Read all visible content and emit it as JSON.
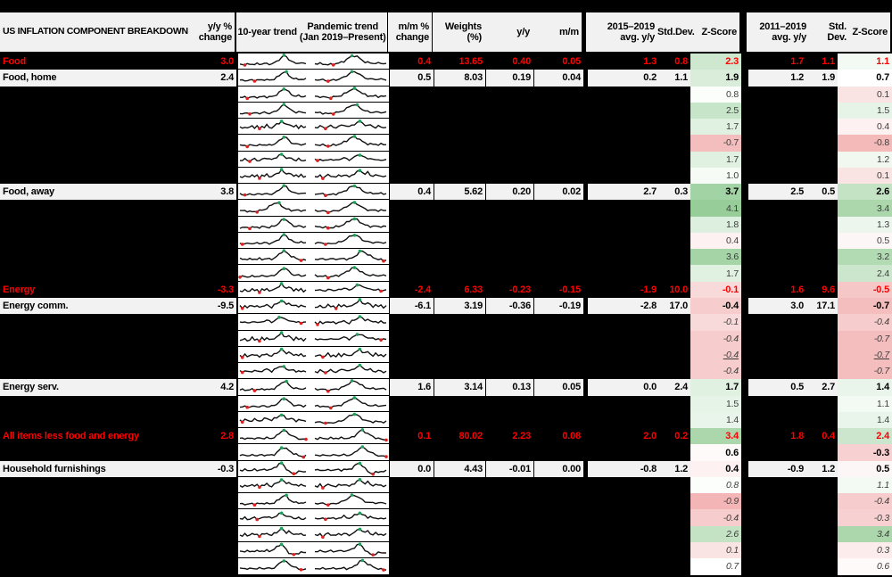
{
  "header": {
    "label": "US INFLATION COMPONENT BREAKDOWN",
    "yy": "y/y %\nchange",
    "trend10": "10-year trend",
    "pandemic": "Pandemic trend\n(Jan 2019–Present)",
    "mm": "m/m %\nchange",
    "weights": "Weights\n(%)",
    "yoy": "y/y",
    "mom": "m/m",
    "avg15": "2015–2019\navg. y/y",
    "sd15": "Std.Dev.",
    "z1": "Z-Score",
    "avg11": "2011–2019\navg. y/y",
    "sd11": "Std. Dev.",
    "z2": "Z-Score"
  },
  "colors": {
    "accent_red": "#fe0000",
    "row_light_bg": "#f2f2f2",
    "header_bg": "#f1f1f1",
    "black": "#000000",
    "z_green_end": "#96cd98",
    "z_red_end": "#f2b0b0",
    "spark_line": "#111111",
    "spark_max_dot": "#1fa05a",
    "spark_min_dot": "#df2020"
  },
  "z_scale": {
    "midpoint": 0.7,
    "green_at": 4.1,
    "red_at": -1.0
  },
  "rows": [
    {
      "label": "Food",
      "type": "agg",
      "yy": "3.0",
      "mm": "0.4",
      "w": "13.65",
      "yoy": "0.40",
      "mom": "0.05",
      "a15": "1.3",
      "s15": "0.8",
      "z15": "2.3",
      "a11": "1.7",
      "s11": "1.1",
      "z11": "1.1",
      "sp": [
        "hump",
        1,
        "phump",
        2
      ]
    },
    {
      "label": "Food, home",
      "type": "sub",
      "yy": "2.4",
      "mm": "0.5",
      "w": "8.03",
      "yoy": "0.19",
      "mom": "0.04",
      "a15": "0.2",
      "s15": "1.1",
      "z15": "1.9",
      "a11": "1.2",
      "s11": "1.9",
      "z11": "0.7",
      "sp": [
        "hump",
        3,
        "phump",
        4
      ]
    },
    {
      "label": "",
      "type": "hidden",
      "z15": "0.8",
      "z11": "0.1",
      "sp": [
        "hump",
        5,
        "phump",
        6
      ]
    },
    {
      "label": "",
      "type": "hidden",
      "z15": "2.5",
      "z11": "1.5",
      "sp": [
        "hump",
        7,
        "phump",
        8
      ]
    },
    {
      "label": "",
      "type": "hidden",
      "z15": "1.7",
      "z11": "0.4",
      "sp": [
        "volatile",
        9,
        "wavy",
        10
      ]
    },
    {
      "label": "",
      "type": "hidden",
      "z15": "-0.7",
      "z11": "-0.8",
      "sp": [
        "hump",
        11,
        "phump",
        12
      ]
    },
    {
      "label": "",
      "type": "hidden",
      "z15": "1.7",
      "z11": "1.2",
      "sp": [
        "wavy",
        13,
        "wavy",
        14
      ]
    },
    {
      "label": "",
      "type": "hidden",
      "z15": "1.0",
      "z11": "0.1",
      "sp": [
        "volatile",
        15,
        "volatile",
        16
      ]
    },
    {
      "label": "Food, away",
      "type": "sub",
      "yy": "3.8",
      "mm": "0.4",
      "w": "5.62",
      "yoy": "0.20",
      "mom": "0.02",
      "a15": "2.7",
      "s15": "0.3",
      "z15": "3.7",
      "a11": "2.5",
      "s11": "0.5",
      "z11": "2.6",
      "sp": [
        "hump",
        17,
        "phump",
        18
      ]
    },
    {
      "label": "",
      "type": "hidden",
      "z15": "4.1",
      "z11": "3.4",
      "sp": [
        "phump",
        19,
        "phump",
        20
      ]
    },
    {
      "label": "",
      "type": "hidden",
      "z15": "1.8",
      "z11": "1.3",
      "sp": [
        "hump",
        21,
        "phump",
        22
      ]
    },
    {
      "label": "",
      "type": "hidden",
      "z15": "0.4",
      "z11": "0.5",
      "sp": [
        "hump",
        23,
        "phump",
        24
      ]
    },
    {
      "label": "",
      "type": "hidden",
      "z15": "3.6",
      "z11": "3.2",
      "sp": [
        "corehump",
        25,
        "corehump",
        26
      ]
    },
    {
      "label": "",
      "type": "hidden",
      "z15": "1.7",
      "z11": "2.4",
      "sp": [
        "hump",
        27,
        "phump",
        28
      ]
    },
    {
      "label": "Energy",
      "type": "agg",
      "yy": "-3.3",
      "mm": "-2.4",
      "w": "6.33",
      "yoy": "-0.23",
      "mom": "-0.15",
      "a15": "-1.9",
      "s15": "10.0",
      "z15": "-0.1",
      "a11": "1.6",
      "s11": "9.6",
      "z11": "-0.5",
      "sp": [
        "volatile",
        29,
        "wavy",
        30
      ]
    },
    {
      "label": "Energy comm.",
      "type": "sub",
      "yy": "-9.5",
      "mm": "-6.1",
      "w": "3.19",
      "yoy": "-0.36",
      "mom": "-0.19",
      "a15": "-2.8",
      "s15": "17.0",
      "z15": "-0.4",
      "a11": "3.0",
      "s11": "17.1",
      "z11": "-0.7",
      "sp": [
        "volatile",
        31,
        "volatile",
        32
      ]
    },
    {
      "label": "",
      "type": "hidden",
      "italic": true,
      "z15": "-0.1",
      "z11": "-0.4",
      "sp": [
        "wavy",
        33,
        "volatile",
        34
      ]
    },
    {
      "label": "",
      "type": "hidden",
      "italic": true,
      "z15": "-0.4",
      "z11": "-0.7",
      "sp": [
        "volatile",
        35,
        "wavy",
        36
      ]
    },
    {
      "label": "",
      "type": "hidden",
      "italic": true,
      "underline": true,
      "z15": "-0.4",
      "z11": "-0.7",
      "sp": [
        "volatile",
        37,
        "volatile",
        38
      ]
    },
    {
      "label": "",
      "type": "hidden",
      "italic": true,
      "z15": "-0.4",
      "z11": "-0.7",
      "sp": [
        "wavy",
        39,
        "wavy",
        40
      ]
    },
    {
      "label": "Energy serv.",
      "type": "sub",
      "yy": "4.2",
      "mm": "1.6",
      "w": "3.14",
      "yoy": "0.13",
      "mom": "0.05",
      "a15": "0.0",
      "s15": "2.4",
      "z15": "1.7",
      "a11": "0.5",
      "s11": "2.7",
      "z11": "1.4",
      "sp": [
        "hump",
        41,
        "phump",
        42
      ]
    },
    {
      "label": "",
      "type": "hidden",
      "z15": "1.5",
      "z11": "1.1",
      "sp": [
        "hump",
        43,
        "phump",
        44
      ]
    },
    {
      "label": "",
      "type": "hidden",
      "z15": "1.4",
      "z11": "1.4",
      "sp": [
        "wavy",
        45,
        "phump",
        46
      ]
    },
    {
      "label": "All items less food and energy",
      "type": "agg",
      "yy": "2.8",
      "mm": "0.1",
      "w": "80.02",
      "yoy": "2.23",
      "mom": "0.08",
      "a15": "2.0",
      "s15": "0.2",
      "z15": "3.4",
      "a11": "1.8",
      "s11": "0.4",
      "z11": "2.4",
      "sp": [
        "corehump",
        47,
        "corehump",
        48
      ]
    },
    {
      "label": "",
      "type": "hidden",
      "bold": true,
      "z15": "0.6",
      "z11": "-0.3",
      "sp": [
        "corehump",
        49,
        "corehump",
        50
      ]
    },
    {
      "label": "Household furnishings",
      "type": "sub",
      "yy": "-0.3",
      "mm": "0.0",
      "w": "4.43",
      "yoy": "-0.01",
      "mom": "0.00",
      "a15": "-0.8",
      "s15": "1.2",
      "z15": "0.4",
      "a11": "-0.9",
      "s11": "1.2",
      "z11": "0.5",
      "sp": [
        "latedrop",
        51,
        "latedrop",
        52
      ]
    },
    {
      "label": "",
      "type": "hidden",
      "italic": true,
      "z15": "0.8",
      "z11": "1.1",
      "sp": [
        "volatile",
        53,
        "volatile",
        54
      ]
    },
    {
      "label": "",
      "type": "hidden",
      "italic": true,
      "z15": "-0.9",
      "z11": "-0.4",
      "sp": [
        "hump",
        55,
        "phump",
        56
      ]
    },
    {
      "label": "",
      "type": "hidden",
      "italic": true,
      "z15": "-0.4",
      "z11": "-0.3",
      "sp": [
        "wavy",
        57,
        "wavy",
        58
      ]
    },
    {
      "label": "",
      "type": "hidden",
      "italic": true,
      "z15": "2.6",
      "z11": "3.4",
      "sp": [
        "volatile",
        59,
        "volatile",
        60
      ]
    },
    {
      "label": "",
      "type": "hidden",
      "italic": true,
      "z15": "0.1",
      "z11": "0.3",
      "sp": [
        "latedrop",
        61,
        "latedrop",
        62
      ]
    },
    {
      "label": "",
      "type": "hidden",
      "italic": true,
      "z15": "0.7",
      "z11": "0.6",
      "sp": [
        "corehump",
        63,
        "corehump",
        64
      ]
    }
  ],
  "sparklines": {
    "patterns": {
      "hump": [
        0.28,
        0.26,
        0.27,
        0.25,
        0.27,
        0.29,
        0.27,
        0.3,
        0.28,
        0.31,
        0.34,
        0.3,
        0.28,
        0.32,
        0.38,
        0.48,
        0.62,
        0.8,
        0.93,
        0.86,
        0.66,
        0.5,
        0.4,
        0.36,
        0.38,
        0.35,
        0.33,
        0.36
      ],
      "phump": [
        0.33,
        0.31,
        0.32,
        0.3,
        0.27,
        0.23,
        0.26,
        0.29,
        0.32,
        0.36,
        0.42,
        0.52,
        0.64,
        0.78,
        0.9,
        0.94,
        0.86,
        0.72,
        0.57,
        0.46,
        0.4,
        0.37,
        0.35,
        0.37,
        0.34,
        0.36,
        0.33,
        0.35
      ],
      "volatile": [
        0.44,
        0.36,
        0.5,
        0.33,
        0.45,
        0.56,
        0.4,
        0.48,
        0.35,
        0.52,
        0.43,
        0.58,
        0.46,
        0.38,
        0.54,
        0.64,
        0.76,
        0.9,
        0.74,
        0.62,
        0.72,
        0.54,
        0.45,
        0.57,
        0.42,
        0.52,
        0.4,
        0.47
      ],
      "wavy": [
        0.46,
        0.4,
        0.52,
        0.45,
        0.38,
        0.47,
        0.54,
        0.45,
        0.41,
        0.5,
        0.56,
        0.62,
        0.53,
        0.47,
        0.58,
        0.68,
        0.8,
        0.88,
        0.76,
        0.63,
        0.55,
        0.61,
        0.49,
        0.43,
        0.51,
        0.45,
        0.41,
        0.47
      ],
      "corehump": [
        0.31,
        0.3,
        0.32,
        0.3,
        0.29,
        0.31,
        0.32,
        0.3,
        0.33,
        0.31,
        0.32,
        0.34,
        0.31,
        0.33,
        0.37,
        0.5,
        0.68,
        0.87,
        0.92,
        0.81,
        0.67,
        0.55,
        0.44,
        0.36,
        0.29,
        0.25,
        0.21,
        0.24
      ],
      "latedrop": [
        0.41,
        0.39,
        0.42,
        0.4,
        0.38,
        0.41,
        0.43,
        0.4,
        0.42,
        0.44,
        0.41,
        0.45,
        0.43,
        0.47,
        0.56,
        0.71,
        0.89,
        0.93,
        0.75,
        0.51,
        0.31,
        0.19,
        0.13,
        0.21,
        0.27,
        0.31,
        0.29,
        0.32
      ]
    }
  }
}
